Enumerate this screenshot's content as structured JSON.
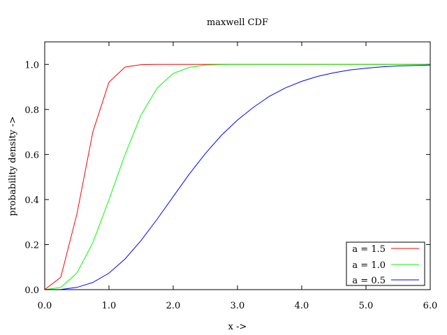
{
  "chart_data": {
    "type": "line",
    "title": "maxwell CDF",
    "xlabel": "x ->",
    "ylabel": "probability density ->",
    "xlim": [
      0,
      6
    ],
    "ylim": [
      0,
      1.1
    ],
    "x_ticks": [
      0,
      1,
      2,
      3,
      4,
      5,
      6
    ],
    "x_tick_labels": [
      "0.0",
      "1.0",
      "2.0",
      "3.0",
      "4.0",
      "5.0",
      "6.0"
    ],
    "y_ticks": [
      0,
      0.2,
      0.4,
      0.6,
      0.8,
      1.0
    ],
    "y_tick_labels": [
      "0.0",
      "0.2",
      "0.4",
      "0.6",
      "0.8",
      "1.0"
    ],
    "grid": false,
    "legend_position": "bottom-right",
    "x": [
      0.0,
      0.25,
      0.5,
      0.75,
      1.0,
      1.25,
      1.5,
      1.75,
      2.0,
      2.25,
      2.5,
      2.75,
      3.0,
      3.25,
      3.5,
      3.75,
      4.0,
      4.25,
      4.5,
      4.75,
      5.0,
      5.25,
      5.5,
      5.75,
      6.0
    ],
    "series": [
      {
        "name": "a = 1.5",
        "color": "#ff0000",
        "values": [
          0.0,
          0.055,
          0.334,
          0.701,
          0.921,
          0.988,
          0.999,
          1.0,
          1.0,
          1.0,
          1.0,
          1.0,
          1.0,
          1.0,
          1.0,
          1.0,
          1.0,
          1.0,
          1.0,
          1.0,
          1.0,
          1.0,
          1.0,
          1.0,
          1.0
        ]
      },
      {
        "name": "a = 1.0",
        "color": "#00ff00",
        "values": [
          0.0,
          0.01,
          0.073,
          0.209,
          0.399,
          0.6,
          0.776,
          0.895,
          0.96,
          0.987,
          0.997,
          0.999,
          1.0,
          1.0,
          1.0,
          1.0,
          1.0,
          1.0,
          1.0,
          1.0,
          1.0,
          1.0,
          1.0,
          1.0,
          1.0
        ]
      },
      {
        "name": "a = 0.5",
        "color": "#0000ff",
        "values": [
          0.0,
          0.001,
          0.01,
          0.032,
          0.073,
          0.136,
          0.218,
          0.313,
          0.413,
          0.513,
          0.604,
          0.685,
          0.753,
          0.81,
          0.859,
          0.896,
          0.925,
          0.947,
          0.963,
          0.975,
          0.983,
          0.989,
          0.993,
          0.995,
          0.997
        ]
      }
    ]
  }
}
